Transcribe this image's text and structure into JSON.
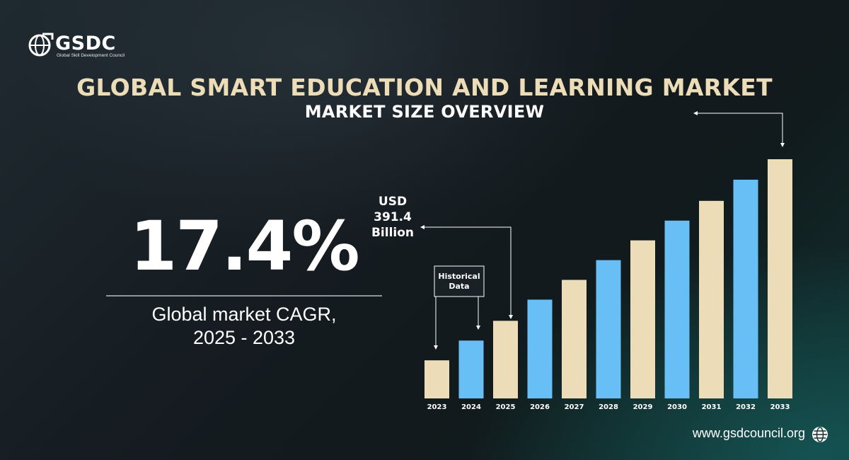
{
  "brand": {
    "name": "GSDC",
    "tagline": "Global Skill Development Council",
    "website": "www.gsdcouncil.org"
  },
  "title": "GLOBAL SMART EDUCATION AND LEARNING MARKET",
  "subtitle": "MARKET SIZE OVERVIEW",
  "cagr": {
    "value": "17.4%",
    "label_line1": "Global market CAGR,",
    "label_line2": "2025 - 2033"
  },
  "icons": [
    "globe-logo-icon",
    "globe-icon"
  ],
  "colors": {
    "historical_bar": "#68bff5",
    "forecast_bar": "#ecdcb8",
    "title": "#ecdcb8"
  },
  "chart_data": {
    "type": "bar",
    "categories": [
      "2023",
      "2024",
      "2025",
      "2026",
      "2027",
      "2028",
      "2029",
      "2030",
      "2031",
      "2032",
      "2033"
    ],
    "values": [
      54,
      82,
      110,
      140,
      168,
      196,
      224,
      252,
      280,
      310,
      339
    ],
    "bar_colors": [
      "#ecdcb8",
      "#68bff5",
      "#ecdcb8",
      "#68bff5",
      "#ecdcb8",
      "#68bff5",
      "#ecdcb8",
      "#68bff5",
      "#ecdcb8",
      "#68bff5",
      "#ecdcb8"
    ],
    "value_scale": "relative (no value axis shown)",
    "ylim": [
      0,
      340
    ],
    "annotations": [
      {
        "text_lines": [
          "Historical",
          "Data"
        ],
        "boxed": true
      },
      {
        "text_lines": [
          "USD",
          "391.4",
          "Billion"
        ]
      }
    ],
    "legend": "none",
    "grid": false
  }
}
